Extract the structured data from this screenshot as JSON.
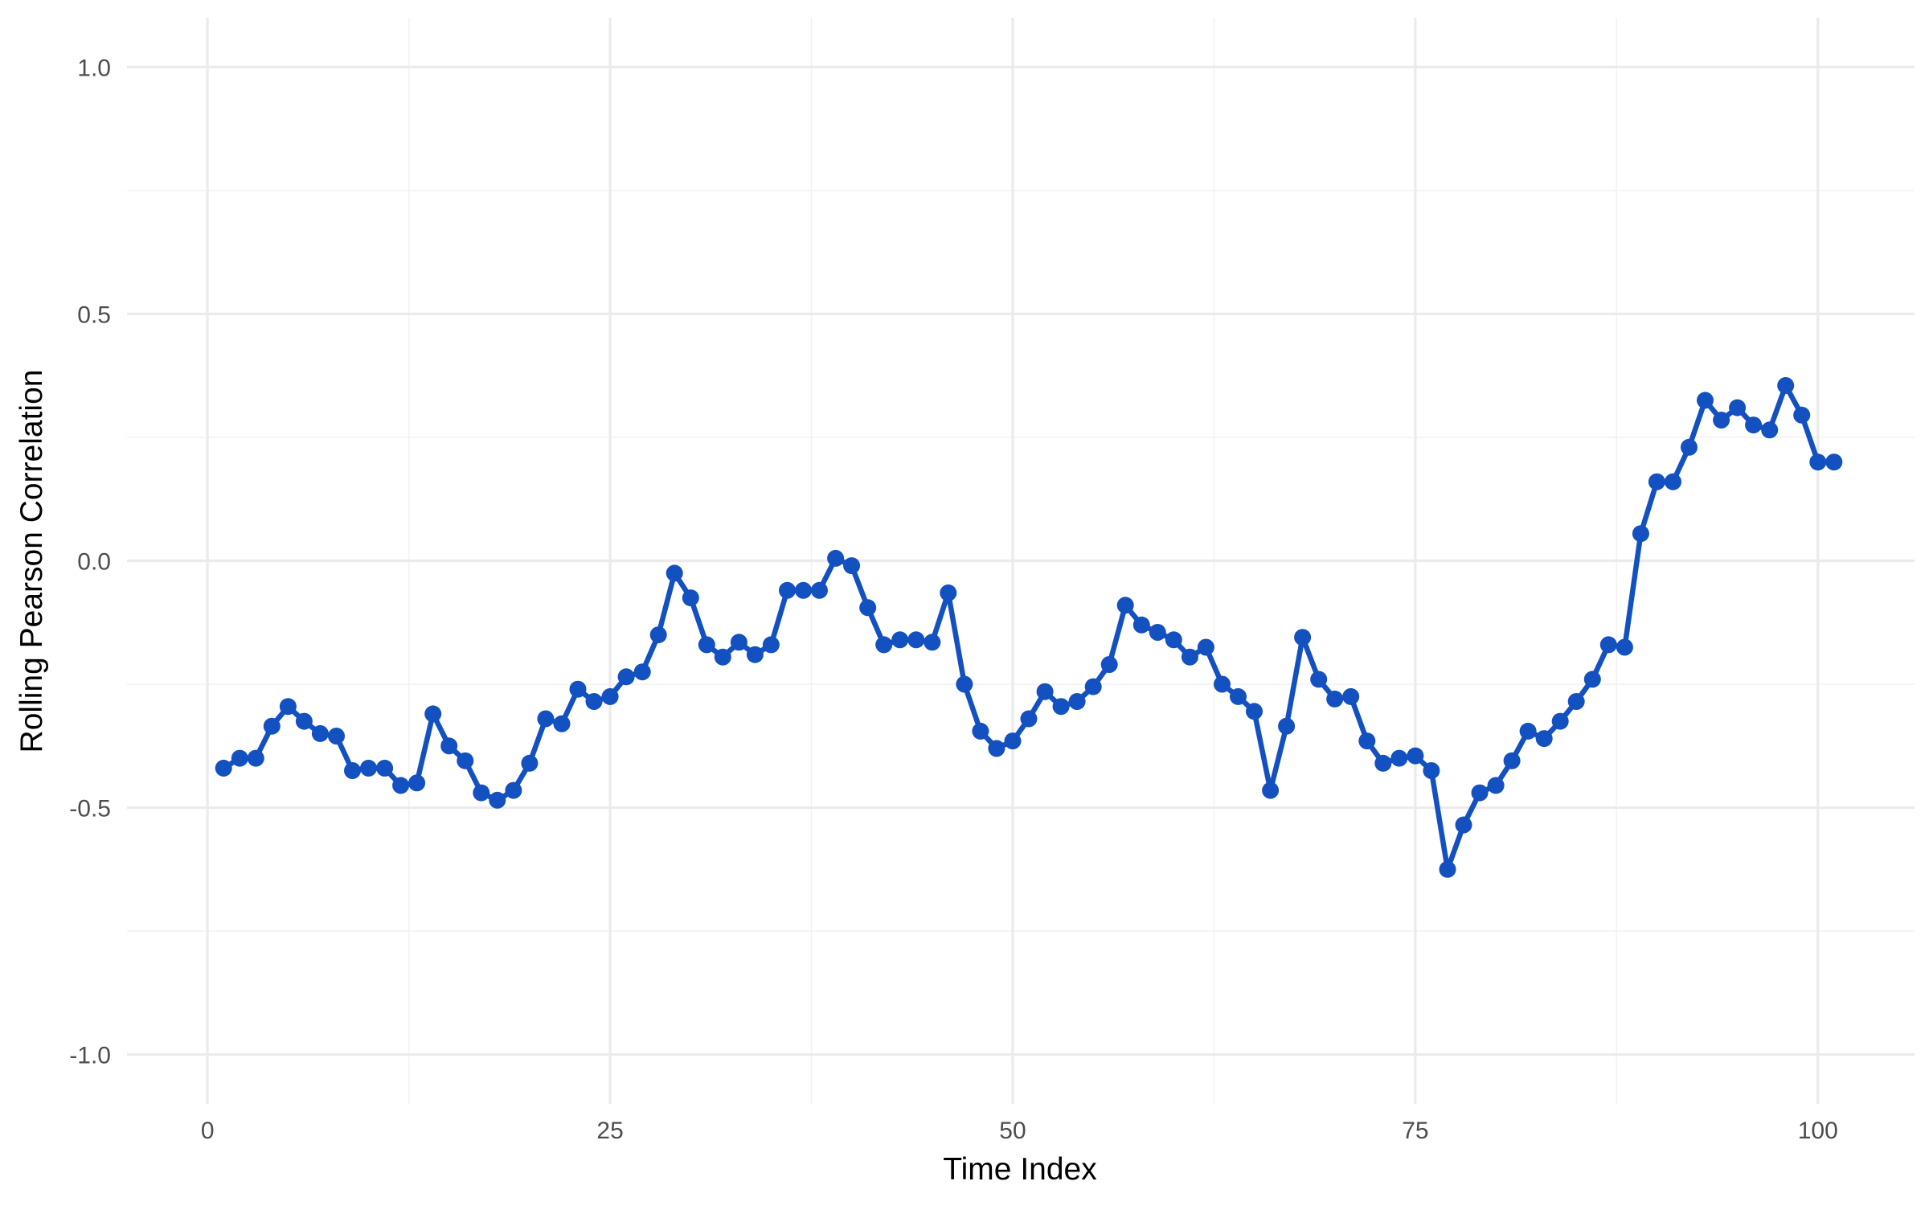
{
  "chart_data": {
    "type": "line",
    "title": "",
    "xlabel": "Time Index",
    "ylabel": "Rolling Pearson Correlation",
    "xlim": [
      -5,
      106
    ],
    "ylim": [
      -1.1,
      1.1
    ],
    "x_ticks": [
      0,
      25,
      50,
      75,
      100
    ],
    "x_tick_labels": [
      "0",
      "25",
      "50",
      "75",
      "100"
    ],
    "y_ticks": [
      -1.0,
      -0.5,
      0.0,
      0.5,
      1.0
    ],
    "y_tick_labels": [
      "-1.0",
      "-0.5",
      "0.0",
      "0.5",
      "1.0"
    ],
    "grid": true,
    "legend": "none",
    "series": [
      {
        "color": "#1350c0",
        "markers": true,
        "x": [
          1,
          2,
          3,
          4,
          5,
          6,
          7,
          8,
          9,
          10,
          11,
          12,
          13,
          14,
          15,
          16,
          17,
          18,
          19,
          20,
          21,
          22,
          23,
          24,
          25,
          26,
          27,
          28,
          29,
          30,
          31,
          32,
          33,
          34,
          35,
          36,
          37,
          38,
          39,
          40,
          41,
          42,
          43,
          44,
          45,
          46,
          47,
          48,
          49,
          50,
          51,
          52,
          53,
          54,
          55,
          56,
          57,
          58,
          59,
          60,
          61,
          62,
          63,
          64,
          65,
          66,
          67,
          68,
          69,
          70,
          71,
          72,
          73,
          74,
          75,
          76,
          77,
          78,
          79,
          80,
          81,
          82,
          83,
          84,
          85,
          86,
          87,
          88,
          89,
          90,
          91,
          92,
          93,
          94,
          95,
          96,
          97,
          98,
          99,
          100,
          101
        ],
        "y": [
          -0.42,
          -0.4,
          -0.4,
          -0.335,
          -0.295,
          -0.325,
          -0.35,
          -0.355,
          -0.425,
          -0.42,
          -0.42,
          -0.455,
          -0.45,
          -0.31,
          -0.375,
          -0.405,
          -0.47,
          -0.485,
          -0.465,
          -0.41,
          -0.32,
          -0.33,
          -0.26,
          -0.285,
          -0.275,
          -0.235,
          -0.225,
          -0.15,
          -0.025,
          -0.075,
          -0.17,
          -0.195,
          -0.165,
          -0.19,
          -0.17,
          -0.06,
          -0.06,
          -0.06,
          0.005,
          -0.01,
          -0.095,
          -0.17,
          -0.16,
          -0.16,
          -0.165,
          -0.065,
          -0.25,
          -0.345,
          -0.38,
          -0.365,
          -0.32,
          -0.265,
          -0.295,
          -0.285,
          -0.255,
          -0.21,
          -0.09,
          -0.13,
          -0.145,
          -0.16,
          -0.195,
          -0.175,
          -0.25,
          -0.275,
          -0.305,
          -0.465,
          -0.335,
          -0.155,
          -0.24,
          -0.28,
          -0.275,
          -0.365,
          -0.41,
          -0.4,
          -0.395,
          -0.425,
          -0.625,
          -0.535,
          -0.47,
          -0.455,
          -0.405,
          -0.345,
          -0.36,
          -0.325,
          -0.285,
          -0.24,
          -0.17,
          -0.175,
          0.055,
          0.16,
          0.16,
          0.23,
          0.325,
          0.285,
          0.31,
          0.275,
          0.265,
          0.355,
          0.295,
          0.2,
          0.2
        ]
      }
    ]
  }
}
